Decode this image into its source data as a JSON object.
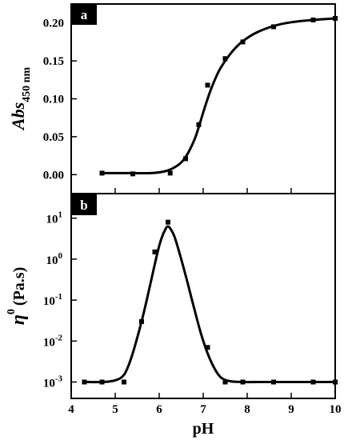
{
  "chart_data": [
    {
      "type": "line",
      "panel_label": "a",
      "ylabel": "Abs",
      "ylabel_sub": "450 nm",
      "xlim": [
        4,
        10
      ],
      "ylim": [
        -0.025,
        0.225
      ],
      "y_ticks": [
        "0.00",
        "0.05",
        "0.10",
        "0.15",
        "0.20"
      ],
      "y_tick_values": [
        0.0,
        0.05,
        0.1,
        0.15,
        0.2
      ],
      "grid": false,
      "legend": "none",
      "series": [
        {
          "points_x": [
            4.7,
            5.4,
            6.25,
            6.6,
            6.9,
            7.1,
            7.5,
            7.9,
            8.6,
            9.5,
            10.0
          ],
          "points_y": [
            0.002,
            0.001,
            0.002,
            0.021,
            0.066,
            0.118,
            0.153,
            0.175,
            0.195,
            0.204,
            0.206
          ],
          "fit_x": [
            4.7,
            5.0,
            5.4,
            5.8,
            6.1,
            6.3,
            6.5,
            6.65,
            6.8,
            6.9,
            7.0,
            7.1,
            7.2,
            7.35,
            7.5,
            7.7,
            7.9,
            8.2,
            8.6,
            9.0,
            9.5,
            10.0
          ],
          "fit_y": [
            0.002,
            0.002,
            0.002,
            0.002,
            0.004,
            0.008,
            0.016,
            0.028,
            0.046,
            0.063,
            0.082,
            0.1,
            0.116,
            0.136,
            0.15,
            0.165,
            0.176,
            0.187,
            0.196,
            0.201,
            0.204,
            0.206
          ]
        }
      ]
    },
    {
      "type": "line",
      "panel_label": "b",
      "ylabel": "η",
      "ylabel_sup": "0",
      "ylabel_units": "(Pa.s)",
      "xlabel": "pH",
      "xlim": [
        4,
        10
      ],
      "x_ticks": [
        "4",
        "5",
        "6",
        "7",
        "8",
        "9",
        "10"
      ],
      "x_tick_values": [
        4,
        5,
        6,
        7,
        8,
        9,
        10
      ],
      "y_scale": "log",
      "y_log_range": [
        -3.4,
        1.6
      ],
      "y_tick_base": "10",
      "y_tick_exps": [
        "-3",
        "-2",
        "-1",
        "0",
        "1"
      ],
      "y_tick_exp_values": [
        -3,
        -2,
        -1,
        0,
        1
      ],
      "grid": false,
      "legend": "none",
      "series": [
        {
          "points_x": [
            4.3,
            4.7,
            5.2,
            5.6,
            5.9,
            6.2,
            7.1,
            7.5,
            7.9,
            8.6,
            9.5,
            10.0
          ],
          "points_y": [
            0.001,
            0.001,
            0.001,
            0.03,
            1.5,
            8.0,
            0.007,
            0.001,
            0.001,
            0.001,
            0.001,
            0.001
          ],
          "fit_x": [
            4.3,
            4.7,
            5.0,
            5.2,
            5.35,
            5.5,
            5.65,
            5.8,
            5.95,
            6.05,
            6.15,
            6.2,
            6.25,
            6.35,
            6.5,
            6.65,
            6.8,
            6.95,
            7.1,
            7.25,
            7.4,
            7.6,
            7.9,
            8.5,
            9.5,
            10.0
          ],
          "fit_y": [
            0.001,
            0.001,
            0.0011,
            0.0015,
            0.0035,
            0.012,
            0.05,
            0.25,
            1.3,
            3.2,
            5.6,
            6.3,
            5.6,
            3.5,
            1.0,
            0.25,
            0.06,
            0.015,
            0.005,
            0.0022,
            0.0013,
            0.00105,
            0.001,
            0.001,
            0.001,
            0.001
          ]
        }
      ]
    }
  ]
}
